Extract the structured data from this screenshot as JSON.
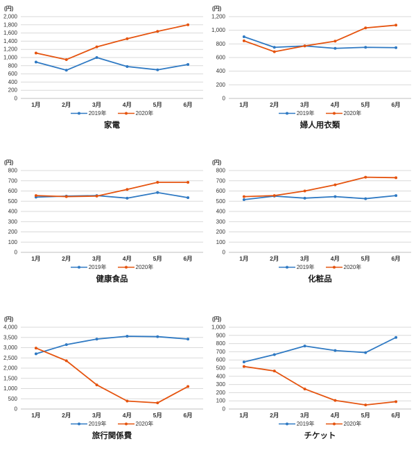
{
  "colors": {
    "series_2019": "#2e79c3",
    "series_2020": "#e5530e",
    "gridline": "#d9d9d9",
    "axis_line": "#bfbfbf",
    "tick_text": "#333333",
    "title_text": "#1a1a1a",
    "background": "#ffffff"
  },
  "legend_labels": [
    "2019年",
    "2020年"
  ],
  "chart_data": [
    {
      "type": "line",
      "title": "家電",
      "y_unit": "(円)",
      "categories": [
        "1月",
        "2月",
        "3月",
        "4月",
        "5月",
        "6月"
      ],
      "ylim": [
        0,
        2000
      ],
      "ytick_step": 200,
      "grid": true,
      "legend_position": "bottom",
      "series": [
        {
          "name": "2019年",
          "color": "#2e79c3",
          "values": [
            890,
            690,
            1000,
            780,
            700,
            830
          ]
        },
        {
          "name": "2020年",
          "color": "#e5530e",
          "values": [
            1110,
            950,
            1260,
            1460,
            1640,
            1800
          ]
        }
      ]
    },
    {
      "type": "line",
      "title": "婦人用衣類",
      "y_unit": "(円)",
      "categories": [
        "1月",
        "2月",
        "3月",
        "4月",
        "5月",
        "6月"
      ],
      "ylim": [
        0,
        1200
      ],
      "ytick_step": 200,
      "grid": true,
      "legend_position": "bottom",
      "series": [
        {
          "name": "2019年",
          "color": "#2e79c3",
          "values": [
            905,
            750,
            770,
            735,
            750,
            745
          ]
        },
        {
          "name": "2020年",
          "color": "#e5530e",
          "values": [
            845,
            685,
            770,
            840,
            1035,
            1075
          ]
        }
      ]
    },
    {
      "type": "line",
      "title": "健康食品",
      "y_unit": "(円)",
      "categories": [
        "1月",
        "2月",
        "3月",
        "4月",
        "5月",
        "6月"
      ],
      "ylim": [
        0,
        800
      ],
      "ytick_step": 100,
      "grid": true,
      "legend_position": "bottom",
      "series": [
        {
          "name": "2019年",
          "color": "#2e79c3",
          "values": [
            540,
            550,
            555,
            530,
            585,
            535
          ]
        },
        {
          "name": "2020年",
          "color": "#e5530e",
          "values": [
            555,
            545,
            550,
            615,
            685,
            685
          ]
        }
      ]
    },
    {
      "type": "line",
      "title": "化粧品",
      "y_unit": "(円)",
      "categories": [
        "1月",
        "2月",
        "3月",
        "4月",
        "5月",
        "6月"
      ],
      "ylim": [
        0,
        800
      ],
      "ytick_step": 100,
      "grid": true,
      "legend_position": "bottom",
      "series": [
        {
          "name": "2019年",
          "color": "#2e79c3",
          "values": [
            515,
            550,
            530,
            545,
            525,
            555
          ]
        },
        {
          "name": "2020年",
          "color": "#e5530e",
          "values": [
            545,
            555,
            600,
            660,
            735,
            730
          ]
        }
      ]
    },
    {
      "type": "line",
      "title": "旅行関係費",
      "y_unit": "(円)",
      "categories": [
        "1月",
        "2月",
        "3月",
        "4月",
        "5月",
        "6月"
      ],
      "ylim": [
        0,
        4000
      ],
      "ytick_step": 500,
      "grid": true,
      "legend_position": "bottom",
      "series": [
        {
          "name": "2019年",
          "color": "#2e79c3",
          "values": [
            2700,
            3150,
            3420,
            3560,
            3540,
            3420
          ]
        },
        {
          "name": "2020年",
          "color": "#e5530e",
          "values": [
            2980,
            2360,
            1180,
            390,
            300,
            1100
          ]
        }
      ]
    },
    {
      "type": "line",
      "title": "チケット",
      "y_unit": "(円)",
      "categories": [
        "1月",
        "2月",
        "3月",
        "4月",
        "5月",
        "6月"
      ],
      "ylim": [
        0,
        1000
      ],
      "ytick_step": 100,
      "grid": true,
      "legend_position": "bottom",
      "series": [
        {
          "name": "2019年",
          "color": "#2e79c3",
          "values": [
            575,
            665,
            770,
            715,
            690,
            875
          ]
        },
        {
          "name": "2020年",
          "color": "#e5530e",
          "values": [
            520,
            465,
            245,
            105,
            50,
            90
          ]
        }
      ]
    }
  ]
}
